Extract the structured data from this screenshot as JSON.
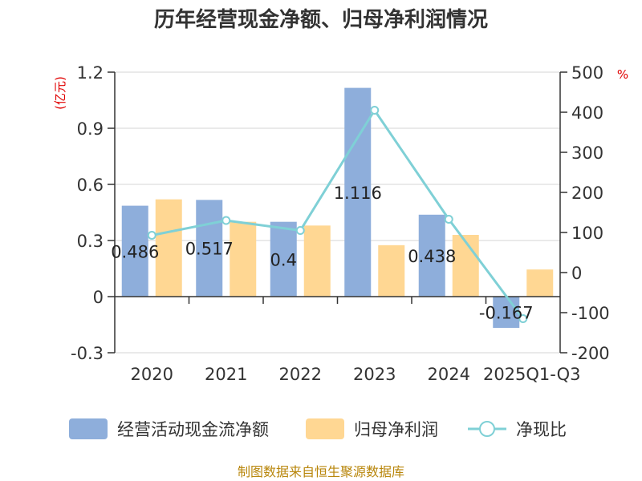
{
  "chart_data": {
    "type": "bar",
    "title": "历年经营现金净额、归母净利润情况",
    "categories": [
      "2020",
      "2021",
      "2022",
      "2023",
      "2024",
      "2025Q1-Q3"
    ],
    "series": [
      {
        "name": "经营活动现金流净额",
        "kind": "bar",
        "axis": "left",
        "color": "#8eaedb",
        "values": [
          0.486,
          0.517,
          0.4,
          1.116,
          0.438,
          -0.167
        ]
      },
      {
        "name": "归母净利润",
        "kind": "bar",
        "axis": "left",
        "color": "#ffd793",
        "values": [
          0.52,
          0.4,
          0.38,
          0.275,
          0.33,
          0.145
        ]
      },
      {
        "name": "净现比",
        "kind": "line",
        "axis": "right",
        "color": "#7fd0d6",
        "values": [
          93,
          130,
          105,
          405,
          133,
          -115
        ]
      }
    ],
    "data_labels": [
      "0.486",
      "0.517",
      "0.4",
      "1.116",
      "0.438",
      "-0.167"
    ],
    "left_axis": {
      "unit": "(亿元)",
      "ylim": [
        -0.3,
        1.2
      ],
      "ticks": [
        1.2,
        0.9,
        0.6,
        0.3,
        0,
        -0.3
      ],
      "tick_labels": [
        "1.2",
        "0.9",
        "0.6",
        "0.3",
        "0",
        "-0.3"
      ]
    },
    "right_axis": {
      "unit": "%",
      "ylim": [
        -200,
        500
      ],
      "ticks": [
        500,
        400,
        300,
        200,
        100,
        0,
        -100,
        -200
      ],
      "tick_labels": [
        "500",
        "400",
        "300",
        "200",
        "100",
        "0",
        "-100",
        "-200"
      ]
    },
    "grid": true,
    "legend_position": "bottom",
    "source": "制图数据来自恒生聚源数据库"
  }
}
